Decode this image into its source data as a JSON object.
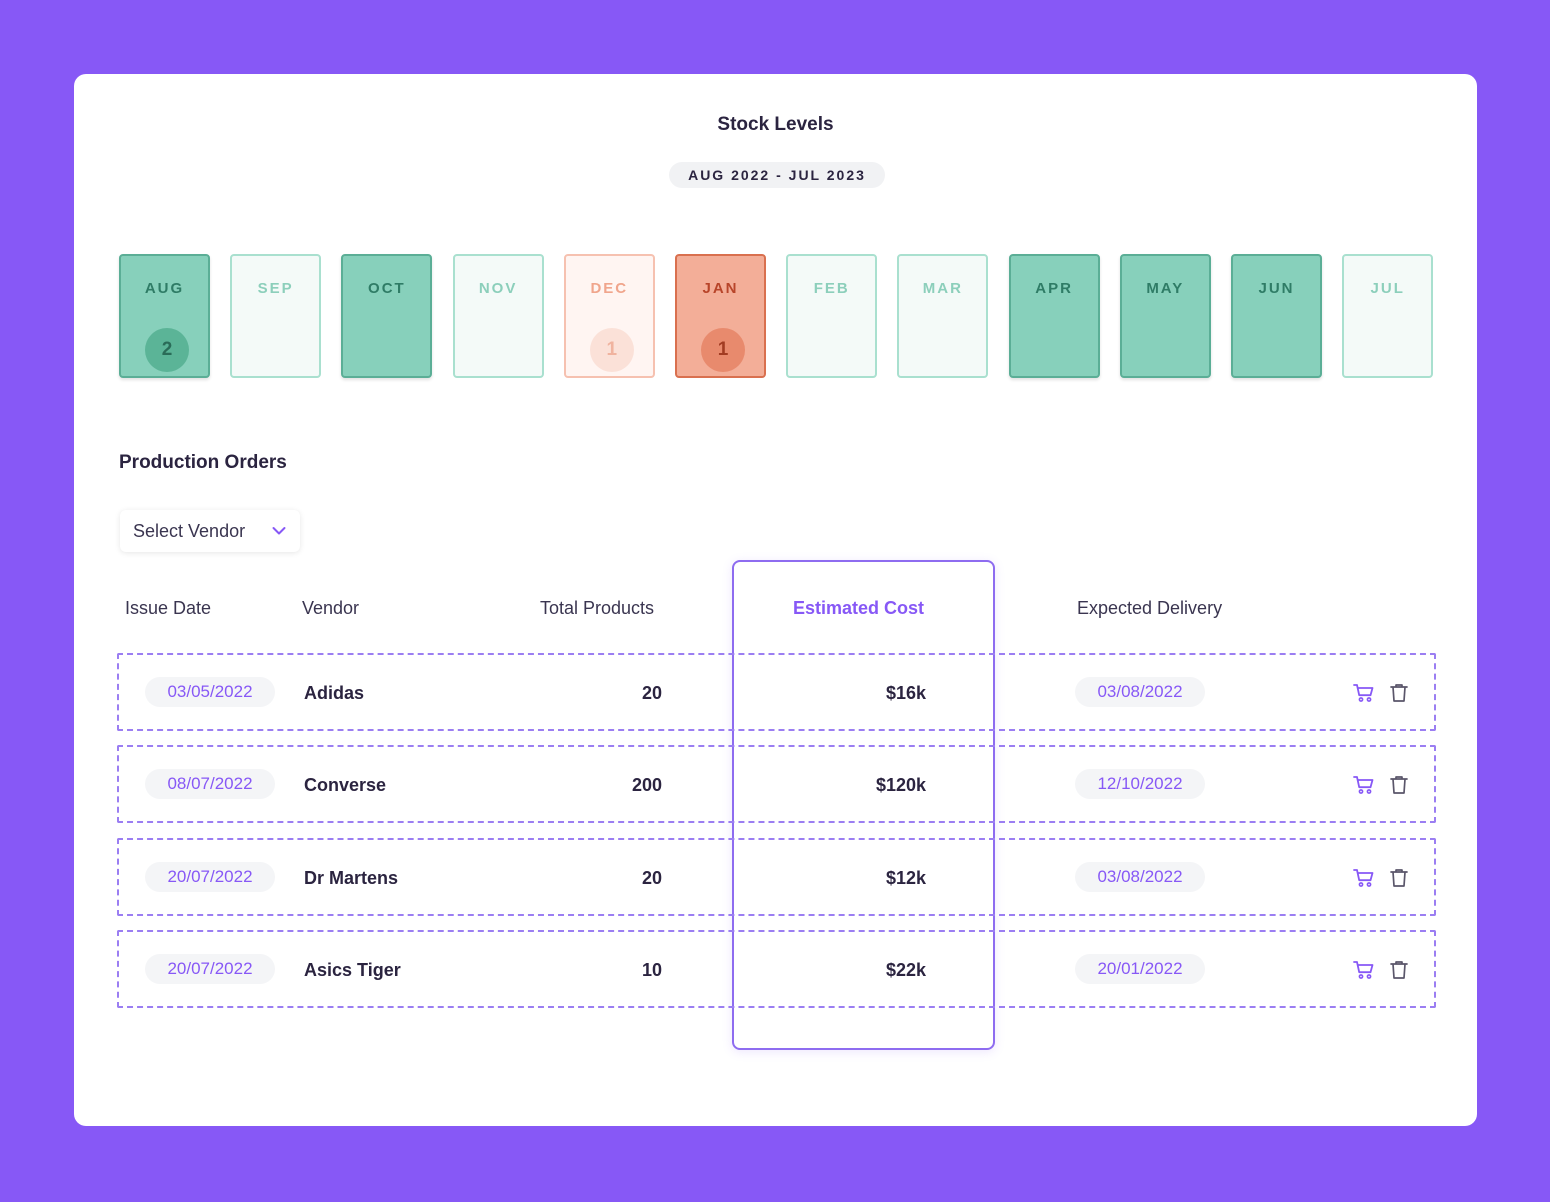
{
  "header": {
    "title": "Stock Levels",
    "range": "AUG 2022 - JUL 2023"
  },
  "months": [
    {
      "label": "AUG",
      "count": "2",
      "state": "in-stock"
    },
    {
      "label": "SEP",
      "count": "",
      "state": "empty"
    },
    {
      "label": "OCT",
      "count": "",
      "state": "in-stock"
    },
    {
      "label": "NOV",
      "count": "",
      "state": "empty"
    },
    {
      "label": "DEC",
      "count": "1",
      "state": "low-faded"
    },
    {
      "label": "JAN",
      "count": "1",
      "state": "low"
    },
    {
      "label": "FEB",
      "count": "",
      "state": "empty"
    },
    {
      "label": "MAR",
      "count": "",
      "state": "empty"
    },
    {
      "label": "APR",
      "count": "",
      "state": "in-stock"
    },
    {
      "label": "MAY",
      "count": "",
      "state": "in-stock"
    },
    {
      "label": "JUN",
      "count": "",
      "state": "in-stock"
    },
    {
      "label": "JUL",
      "count": "",
      "state": "empty"
    }
  ],
  "orders": {
    "title": "Production Orders",
    "vendor_select": {
      "label": "Select Vendor",
      "icon": "chevron-down-icon"
    },
    "columns": {
      "issue_date": "Issue Date",
      "vendor": "Vendor",
      "total_products": "Total Products",
      "estimated_cost": "Estimated Cost",
      "expected_delivery": "Expected Delivery"
    },
    "highlighted_column": "estimated_cost",
    "rows": [
      {
        "issue_date": "03/05/2022",
        "vendor": "Adidas",
        "total_products": "20",
        "estimated_cost": "$16k",
        "expected_delivery": "03/08/2022"
      },
      {
        "issue_date": "08/07/2022",
        "vendor": "Converse",
        "total_products": "200",
        "estimated_cost": "$120k",
        "expected_delivery": "12/10/2022"
      },
      {
        "issue_date": "20/07/2022",
        "vendor": "Dr Martens",
        "total_products": "20",
        "estimated_cost": "$12k",
        "expected_delivery": "03/08/2022"
      },
      {
        "issue_date": "20/07/2022",
        "vendor": "Asics Tiger",
        "total_products": "10",
        "estimated_cost": "$22k",
        "expected_delivery": "20/01/2022"
      }
    ],
    "row_actions": [
      "cart-icon",
      "trash-icon"
    ]
  },
  "colors": {
    "background": "#8758f6",
    "accent": "#8758f6",
    "in_stock": "#87d0bb",
    "low_stock": "#f3ae98"
  }
}
